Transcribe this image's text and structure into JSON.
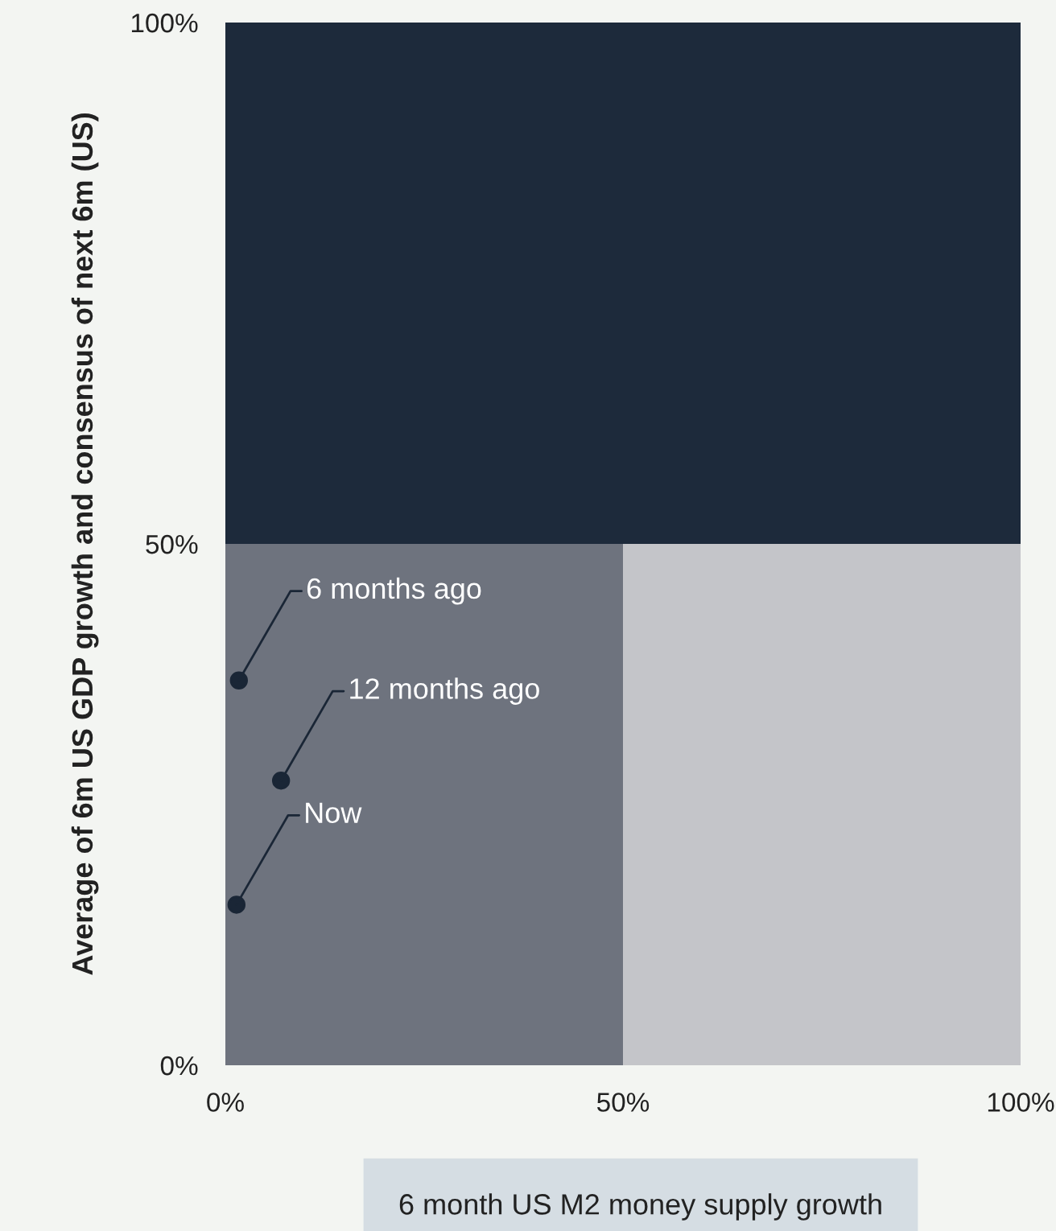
{
  "chart_data": {
    "type": "scatter",
    "xlabel": "6 month US M2 money supply growth",
    "ylabel": "Average of 6m US GDP growth and consensus of next 6m (US)",
    "series": [
      {
        "color": "#1a2636",
        "x": [
          1.4,
          1.7,
          7.0
        ],
        "values": [
          15.4,
          36.9,
          27.3
        ]
      }
    ],
    "marker": "circle",
    "xlim": [
      0,
      100
    ],
    "ylim": [
      0,
      100
    ],
    "xticks": [
      {
        "value": 0,
        "label": "0%"
      },
      {
        "value": 50,
        "label": "50%"
      },
      {
        "value": 100,
        "label": "100%"
      }
    ],
    "yticks": [
      {
        "value": 0,
        "label": "0%"
      },
      {
        "value": 50,
        "label": "50%"
      },
      {
        "value": 100,
        "label": "100%"
      }
    ],
    "bands": [
      {
        "axis": "x",
        "from": 50,
        "to": 100,
        "color": "#c4c5c9"
      },
      {
        "axis": "y",
        "from": 50,
        "to": 100,
        "color": "#1d2a3b"
      }
    ],
    "annotations": [
      {
        "text": "6 months ago",
        "x": 1.7,
        "y": 36.9
      },
      {
        "text": "12 months ago",
        "x": 7.0,
        "y": 27.3
      },
      {
        "text": "Now",
        "x": 1.4,
        "y": 15.4
      }
    ],
    "grid": false
  }
}
